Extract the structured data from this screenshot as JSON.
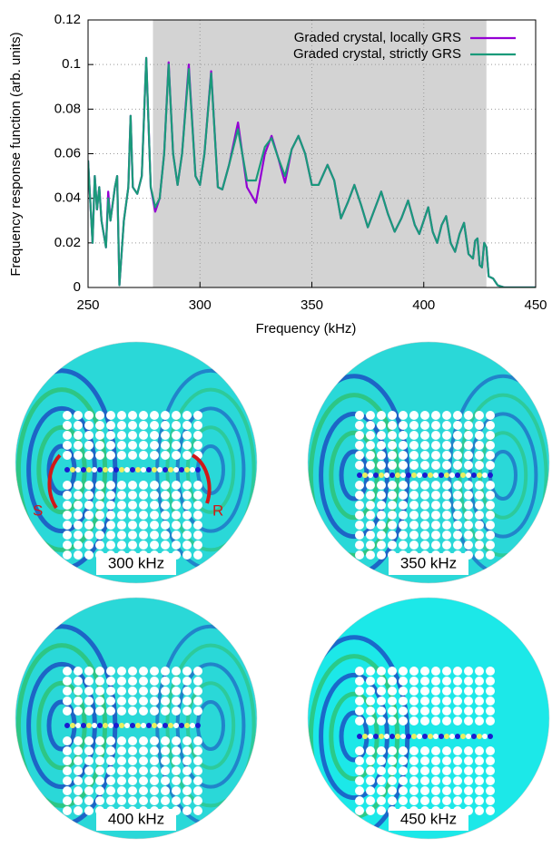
{
  "chart_data": {
    "type": "line",
    "x_label": "Frequency (kHz)",
    "y_label": "Frequency response function (arb. units)",
    "xlim": [
      250,
      450
    ],
    "ylim": [
      0,
      0.12
    ],
    "xticks": [
      250,
      300,
      350,
      400,
      450
    ],
    "yticks": [
      0,
      0.02,
      0.04,
      0.06,
      0.08,
      0.1,
      0.12
    ],
    "grid": true,
    "legend": "top-right",
    "shaded_region": {
      "x": [
        279,
        428
      ],
      "color": "#d3d3d3"
    },
    "x": [
      250,
      252,
      253,
      254,
      255,
      256,
      258,
      259,
      260,
      262,
      263,
      264,
      266,
      268,
      269,
      270,
      272,
      274,
      276,
      278,
      280,
      282,
      284,
      286,
      288,
      290,
      292,
      295,
      298,
      300,
      302,
      305,
      308,
      310,
      313,
      317,
      321,
      325,
      329,
      332,
      335,
      338,
      341,
      344,
      347,
      350,
      353,
      357,
      360,
      363,
      366,
      369,
      372,
      375,
      378,
      381,
      384,
      387,
      390,
      393,
      396,
      398,
      400,
      402,
      404,
      406,
      408,
      410,
      412,
      414,
      416,
      418,
      420,
      422,
      423,
      424,
      425,
      426,
      427,
      428,
      429,
      431,
      433,
      436,
      440,
      450
    ],
    "series": [
      {
        "name": "Graded crystal, locally GRS",
        "color": "#9400d3",
        "values": [
          0.057,
          0.02,
          0.05,
          0.035,
          0.045,
          0.03,
          0.018,
          0.043,
          0.03,
          0.045,
          0.05,
          0.001,
          0.03,
          0.045,
          0.077,
          0.045,
          0.042,
          0.05,
          0.103,
          0.045,
          0.034,
          0.04,
          0.06,
          0.101,
          0.06,
          0.046,
          0.06,
          0.1,
          0.05,
          0.046,
          0.06,
          0.097,
          0.045,
          0.044,
          0.055,
          0.074,
          0.045,
          0.038,
          0.06,
          0.068,
          0.058,
          0.047,
          0.062,
          0.068,
          0.06,
          0.046,
          0.046,
          0.055,
          0.048,
          0.031,
          0.038,
          0.046,
          0.037,
          0.027,
          0.035,
          0.043,
          0.033,
          0.025,
          0.031,
          0.039,
          0.028,
          0.024,
          0.03,
          0.036,
          0.025,
          0.02,
          0.028,
          0.032,
          0.02,
          0.016,
          0.024,
          0.029,
          0.015,
          0.013,
          0.021,
          0.022,
          0.01,
          0.009,
          0.02,
          0.018,
          0.005,
          0.004,
          0.001,
          0,
          0,
          0
        ]
      },
      {
        "name": "Graded crystal, strictly GRS",
        "color": "#1a9a7a",
        "values": [
          0.057,
          0.02,
          0.05,
          0.035,
          0.045,
          0.03,
          0.018,
          0.04,
          0.03,
          0.045,
          0.05,
          0.001,
          0.03,
          0.045,
          0.077,
          0.045,
          0.042,
          0.05,
          0.103,
          0.045,
          0.036,
          0.04,
          0.06,
          0.1,
          0.06,
          0.046,
          0.06,
          0.098,
          0.05,
          0.046,
          0.06,
          0.096,
          0.045,
          0.044,
          0.055,
          0.071,
          0.048,
          0.048,
          0.063,
          0.067,
          0.058,
          0.05,
          0.062,
          0.068,
          0.06,
          0.046,
          0.046,
          0.055,
          0.048,
          0.031,
          0.038,
          0.046,
          0.037,
          0.027,
          0.035,
          0.043,
          0.033,
          0.025,
          0.031,
          0.039,
          0.028,
          0.024,
          0.03,
          0.036,
          0.025,
          0.02,
          0.028,
          0.032,
          0.02,
          0.016,
          0.024,
          0.029,
          0.015,
          0.013,
          0.021,
          0.022,
          0.01,
          0.009,
          0.02,
          0.018,
          0.005,
          0.004,
          0.001,
          0,
          0,
          0
        ]
      }
    ]
  },
  "panels": [
    {
      "label": "300 kHz"
    },
    {
      "label": "350 kHz"
    },
    {
      "label": "400 kHz"
    },
    {
      "label": "450 kHz"
    }
  ],
  "source_label": "S",
  "receiver_label": "R"
}
